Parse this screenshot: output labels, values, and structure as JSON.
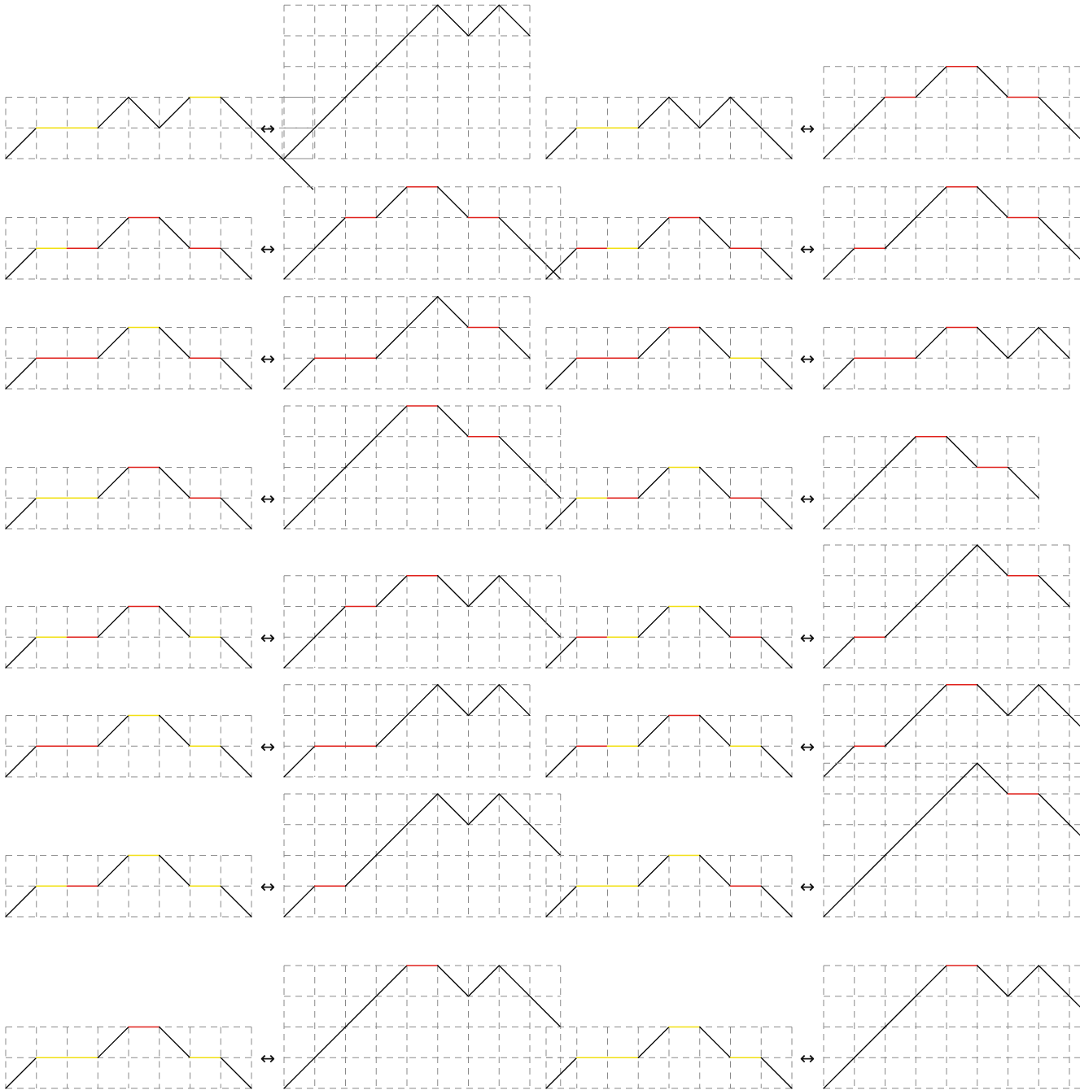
{
  "colors": {
    "flat_a": "#e0201b",
    "flat_b": "#f2e011",
    "step": "#000000",
    "grid": "#8a8a8a"
  },
  "arrow": "↔",
  "legend_note": "",
  "pairs": [
    {
      "left": "UbbUdUbDdD",
      "right": "UUUUUDUD"
    },
    {
      "left": "UbbUdUdD",
      "right": "UUrUrDrDD"
    },
    {
      "left": "UbrUrDrD",
      "right": "UUrUrDrDD"
    },
    {
      "left": "UrbUrDrD",
      "right": "UrUUrDrDD"
    },
    {
      "left": "UrrUbDrD",
      "right": "UrrUUDrD"
    },
    {
      "left": "UrrUrDbD",
      "right": "UrrUrDUD"
    },
    {
      "left": "UbbUrDrD",
      "right": "UUUUrDrDD"
    },
    {
      "left": "UbrUbDrD",
      "right": "UUUrDrD"
    },
    {
      "left": "UbrUrDbD",
      "right": "UUrUrDUDD"
    },
    {
      "left": "UrbUbDrD",
      "right": "UrUUUDrD"
    },
    {
      "left": "UrrUbDbD",
      "right": "UrrUUDUD"
    },
    {
      "left": "UrbUrDbD",
      "right": "UrUUrDUDD"
    },
    {
      "left": "UbrUbDbD",
      "right": "UrUUUDUDD"
    },
    {
      "left": "UbbUbDrD",
      "right": "UUUUUDrDD"
    },
    {
      "left": "UbbUrDbD",
      "right": "UUUUrDUDD"
    },
    {
      "left": "UbbUbDbD",
      "right": "UUUUrDUDD"
    }
  ]
}
